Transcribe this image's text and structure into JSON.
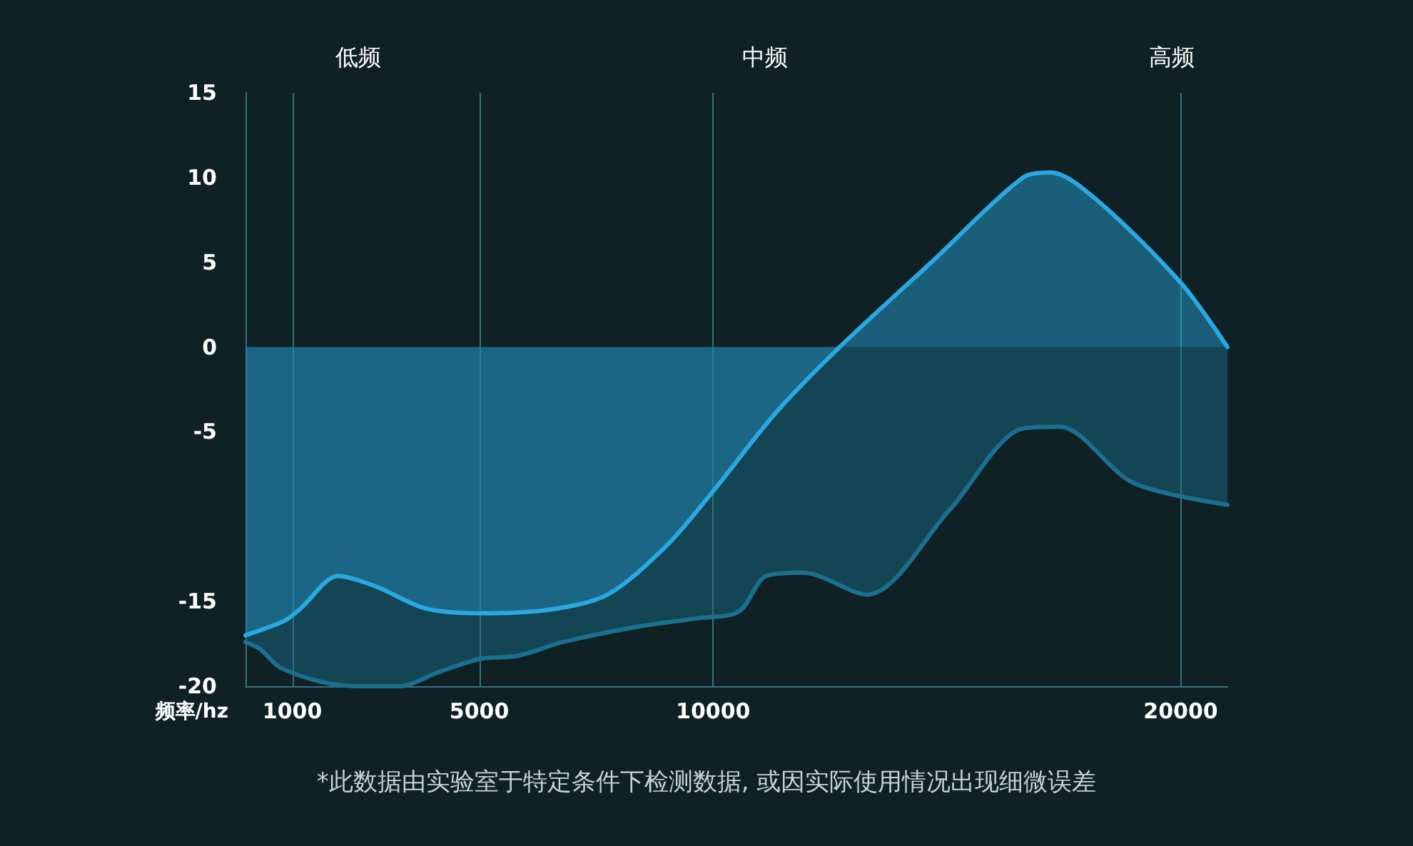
{
  "chart_data": {
    "type": "area",
    "xlabel": "频率/hz",
    "annotations": [
      "低频",
      "中频",
      "高频",
      "*此数据由实验室于特定条件下检测数据, 或因实际使用情况出现细微误差"
    ],
    "xlim": [
      0,
      21000
    ],
    "xticks": [
      1000,
      5000,
      10000,
      20000
    ],
    "ylim": [
      -20,
      15
    ],
    "yticks": [
      -20,
      -15,
      -5,
      0,
      5,
      10,
      15
    ],
    "grid": "x",
    "marker": "none",
    "line_style": "solid",
    "series": [
      {
        "color": "#2aa8e2",
        "x": [
          0,
          418,
          857,
          1185,
          1980,
          2775,
          3835,
          5000,
          6465,
          7740,
          9010,
          10000,
          11333,
          12706,
          14667,
          16627,
          17216,
          18196,
          20000,
          21000
        ],
        "values": [
          -17.0,
          -16.6,
          -16.1,
          -15.4,
          -13.5,
          -14.1,
          -15.4,
          -15.7,
          -15.5,
          -14.6,
          -11.7,
          -8.5,
          -3.9,
          0,
          5,
          10,
          10.3,
          8.7,
          3.8,
          0
        ]
      },
      {
        "color": "#1b7090",
        "x": [
          0,
          308,
          747,
          1716,
          2510,
          3305,
          4100,
          5000,
          5827,
          6780,
          8370,
          9650,
          10549,
          11137,
          11922,
          13294,
          15059,
          16627,
          17412,
          18980,
          21000
        ],
        "values": [
          -17.4,
          -17.8,
          -18.9,
          -19.8,
          -20,
          -20,
          -19.2,
          -18.4,
          -18.2,
          -17.4,
          -16.5,
          -16.0,
          -15.6,
          -13.5,
          -13.3,
          -14.6,
          -9.6,
          -4.8,
          -4.7,
          -8.0,
          -9.3
        ]
      }
    ]
  }
}
